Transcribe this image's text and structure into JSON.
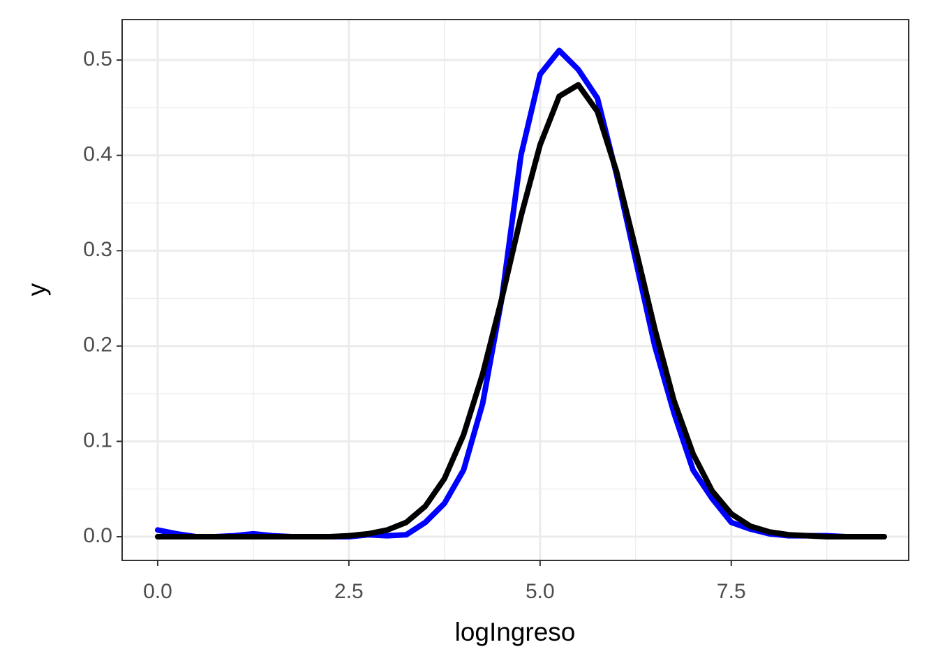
{
  "chart_data": {
    "type": "line",
    "x_label": "logIngreso",
    "y_label": "y",
    "x": [
      0,
      0.25,
      0.5,
      0.75,
      1,
      1.25,
      1.5,
      1.75,
      2,
      2.25,
      2.5,
      2.75,
      3,
      3.25,
      3.5,
      3.75,
      4,
      4.25,
      4.5,
      4.75,
      5,
      5.25,
      5.5,
      5.75,
      6,
      6.25,
      6.5,
      6.75,
      7,
      7.25,
      7.5,
      7.75,
      8,
      8.25,
      8.5,
      8.75,
      9,
      9.25,
      9.5
    ],
    "series": [
      {
        "color": "#0000ff",
        "values": [
          0.007,
          0.003,
          0,
          0,
          0.001,
          0.003,
          0.001,
          0,
          0,
          0,
          0,
          0.002,
          0.001,
          0.002,
          0.015,
          0.035,
          0.07,
          0.14,
          0.25,
          0.4,
          0.485,
          0.51,
          0.49,
          0.46,
          0.38,
          0.29,
          0.2,
          0.13,
          0.07,
          0.04,
          0.015,
          0.008,
          0.003,
          0.001,
          0.001,
          0.001,
          0,
          0,
          0
        ]
      },
      {
        "color": "#000000",
        "values": [
          0,
          0,
          0,
          0,
          0,
          0,
          0,
          0,
          0,
          0,
          0.001,
          0.003,
          0.007,
          0.015,
          0.032,
          0.061,
          0.107,
          0.171,
          0.25,
          0.336,
          0.411,
          0.462,
          0.474,
          0.446,
          0.383,
          0.302,
          0.218,
          0.143,
          0.087,
          0.048,
          0.024,
          0.011,
          0.005,
          0.002,
          0.001,
          0,
          0,
          0,
          0
        ]
      }
    ],
    "xlim": [
      -0.465,
      9.82
    ],
    "xticks": [
      {
        "value": 0,
        "label": "0.0"
      },
      2.5,
      {
        "value": 5,
        "label": "5.0"
      },
      7.5
    ],
    "ylim": [
      -0.0249,
      0.5425
    ],
    "yticks": [
      {
        "value": 0,
        "label": "0.0"
      },
      0.1,
      0.2,
      0.3,
      0.4,
      0.5
    ],
    "grid": true
  }
}
